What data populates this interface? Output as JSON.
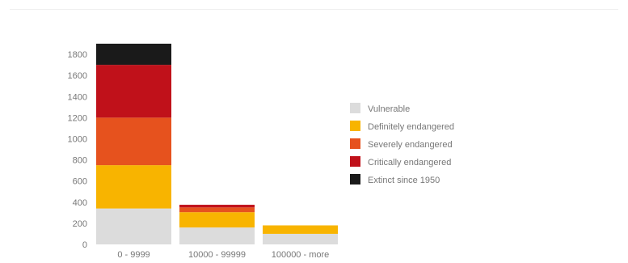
{
  "chart_data": {
    "type": "bar",
    "stacked": true,
    "categories": [
      "0 - 9999",
      "10000 - 99999",
      "100000 - more"
    ],
    "series": [
      {
        "name": "Vulnerable",
        "color": "#dcdcdc",
        "values": [
          340,
          160,
          100
        ]
      },
      {
        "name": "Definitely endangered",
        "color": "#f8b400",
        "values": [
          410,
          145,
          80
        ]
      },
      {
        "name": "Severely endangered",
        "color": "#e6521e",
        "values": [
          450,
          45,
          0
        ]
      },
      {
        "name": "Critically endangered",
        "color": "#c0111a",
        "values": [
          500,
          25,
          0
        ]
      },
      {
        "name": "Extinct since 1950",
        "color": "#1a1a1a",
        "values": [
          200,
          0,
          0
        ]
      }
    ],
    "ylim": [
      0,
      1900
    ],
    "yticks": [
      0,
      200,
      400,
      600,
      800,
      1000,
      1200,
      1400,
      1600,
      1800
    ],
    "title": "",
    "xlabel": "",
    "ylabel": "",
    "legend_position": "right",
    "grid": false
  }
}
